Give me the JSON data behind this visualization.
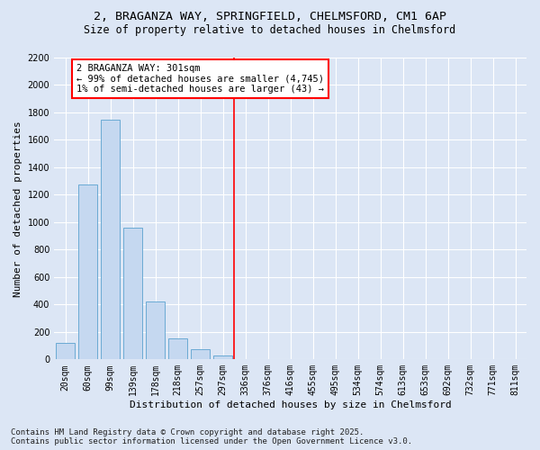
{
  "title": "2, BRAGANZA WAY, SPRINGFIELD, CHELMSFORD, CM1 6AP",
  "subtitle": "Size of property relative to detached houses in Chelmsford",
  "xlabel": "Distribution of detached houses by size in Chelmsford",
  "ylabel": "Number of detached properties",
  "footer_line1": "Contains HM Land Registry data © Crown copyright and database right 2025.",
  "footer_line2": "Contains public sector information licensed under the Open Government Licence v3.0.",
  "bar_labels": [
    "20sqm",
    "60sqm",
    "99sqm",
    "139sqm",
    "178sqm",
    "218sqm",
    "257sqm",
    "297sqm",
    "336sqm",
    "376sqm",
    "416sqm",
    "455sqm",
    "495sqm",
    "534sqm",
    "574sqm",
    "613sqm",
    "653sqm",
    "692sqm",
    "732sqm",
    "771sqm",
    "811sqm"
  ],
  "bar_values": [
    120,
    1275,
    1750,
    960,
    420,
    155,
    75,
    30,
    0,
    0,
    0,
    0,
    0,
    0,
    0,
    0,
    0,
    0,
    0,
    0,
    0
  ],
  "bar_color": "#c5d8f0",
  "bar_edge_color": "#6aaad4",
  "highlight_bar_index": 7,
  "highlight_label": "2 BRAGANZA WAY: 301sqm",
  "highlight_line1": "← 99% of detached houses are smaller (4,745)",
  "highlight_line2": "1% of semi-detached houses are larger (43) →",
  "highlight_color": "red",
  "annotation_box_color": "white",
  "annotation_box_edge": "red",
  "ylim": [
    0,
    2200
  ],
  "yticks": [
    0,
    200,
    400,
    600,
    800,
    1000,
    1200,
    1400,
    1600,
    1800,
    2000,
    2200
  ],
  "bg_color": "#dce6f5",
  "plot_bg_color": "#dce6f5",
  "title_fontsize": 9.5,
  "subtitle_fontsize": 8.5,
  "axis_label_fontsize": 8,
  "tick_fontsize": 7,
  "annotation_fontsize": 7.5,
  "footer_fontsize": 6.5
}
